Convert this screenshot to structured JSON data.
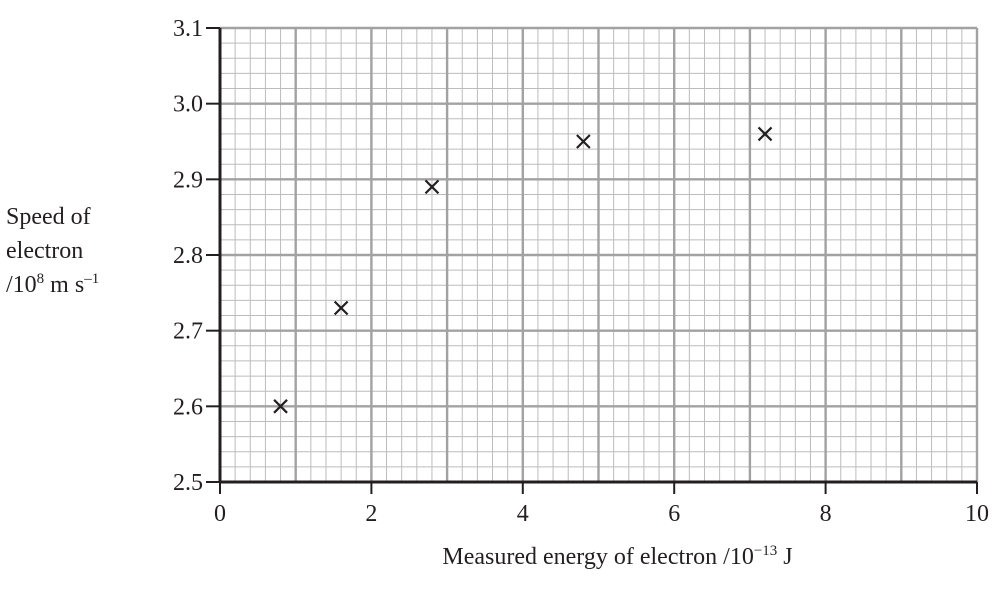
{
  "chart_data": {
    "type": "scatter",
    "title": "",
    "xlabel": {
      "text": "Measured energy of electron /10",
      "power": "−13",
      "unit": " J"
    },
    "ylabel": {
      "line1": "Speed of",
      "line2": "electron",
      "line3_prefix": "/10",
      "line3_power": "8",
      "line3_unit": " m s",
      "line3_unit_power": "–1"
    },
    "xlim": [
      0,
      10
    ],
    "ylim": [
      2.5,
      3.1
    ],
    "xticks": [
      0,
      2,
      4,
      6,
      8,
      10
    ],
    "xtick_labels": [
      "0",
      "2",
      "4",
      "6",
      "8",
      "10"
    ],
    "yticks": [
      2.5,
      2.6,
      2.7,
      2.8,
      2.9,
      3.0,
      3.1
    ],
    "ytick_labels": [
      "2.5",
      "2.6",
      "2.7",
      "2.8",
      "2.9",
      "3.0",
      "3.1"
    ],
    "grid": true,
    "marker": "x",
    "points": [
      {
        "x": 0.8,
        "y": 2.6
      },
      {
        "x": 1.6,
        "y": 2.73
      },
      {
        "x": 2.8,
        "y": 2.89
      },
      {
        "x": 4.8,
        "y": 2.95
      },
      {
        "x": 7.2,
        "y": 2.96
      }
    ]
  }
}
